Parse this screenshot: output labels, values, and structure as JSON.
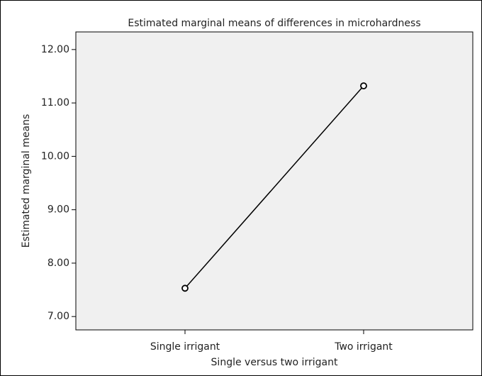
{
  "chart_data": {
    "type": "line",
    "title": "Estimated marginal means of differences in microhardness",
    "x_label": "Single versus two irrigant",
    "y_label": "Estimated marginal means",
    "categories": [
      "Single irrigant",
      "Two irrigant"
    ],
    "values": [
      7.53,
      11.32
    ],
    "color": "#000000",
    "ylim": [
      6.75,
      12.33
    ],
    "yticks": [
      {
        "value": 7,
        "label": "7.00"
      },
      {
        "value": 8,
        "label": "8.00"
      },
      {
        "value": 9,
        "label": "9.00"
      },
      {
        "value": 10,
        "label": "10.00"
      },
      {
        "value": 11,
        "label": "11.00"
      },
      {
        "value": 12,
        "label": "12.00"
      }
    ],
    "grid": false
  }
}
